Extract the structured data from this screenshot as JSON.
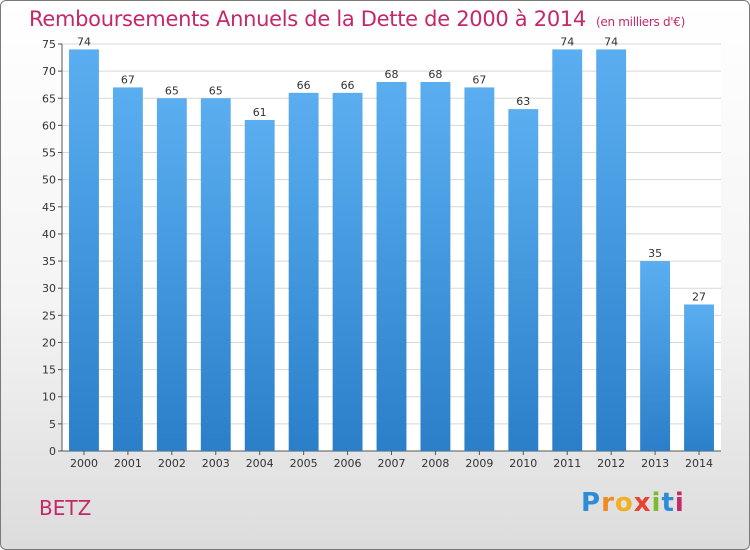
{
  "chart_data": {
    "type": "bar",
    "title": "Remboursements Annuels de la Dette de 2000 à 2014",
    "unit_note": "(en milliers d'€)",
    "categories": [
      "2000",
      "2001",
      "2002",
      "2003",
      "2004",
      "2005",
      "2006",
      "2007",
      "2008",
      "2009",
      "2010",
      "2011",
      "2012",
      "2013",
      "2014"
    ],
    "values": [
      74,
      67,
      65,
      65,
      61,
      66,
      66,
      68,
      68,
      67,
      63,
      74,
      74,
      35,
      27
    ],
    "ylim": [
      0,
      75
    ],
    "yticks": [
      0,
      5,
      10,
      15,
      20,
      25,
      30,
      35,
      40,
      45,
      50,
      55,
      60,
      65,
      70,
      75
    ],
    "grid": true,
    "bar_color": "#3d8fd8"
  },
  "city": "BETZ",
  "logo": [
    "P",
    "r",
    "o",
    "x",
    "i",
    "t",
    "i"
  ]
}
